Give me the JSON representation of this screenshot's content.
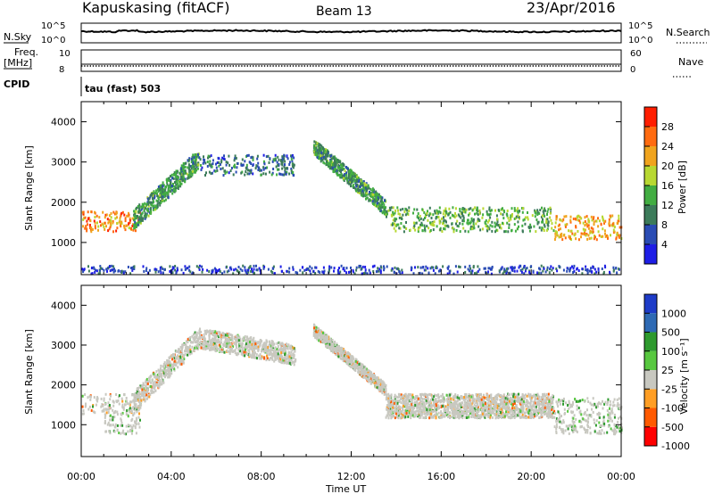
{
  "header": {
    "station": "Kapuskasing (fitACF)",
    "beam": "Beam 13",
    "date": "23/Apr/2016"
  },
  "nsky": {
    "label": "N.Sky",
    "ticks": [
      "10^5",
      "10^0"
    ],
    "right_ticks": [
      "10^5",
      "10^0"
    ],
    "right_label": "N.Search"
  },
  "freq": {
    "label_line1": "Freq.",
    "label_line2": "[MHz]",
    "ticks": [
      "10",
      "8"
    ],
    "right_ticks": [
      "60",
      "0"
    ],
    "right_label": "Nave"
  },
  "cpid": {
    "label": "CPID",
    "mode": "tau (fast) 503"
  },
  "colors": {
    "power": [
      "#1e1ee6",
      "#2a4cb4",
      "#3c7b5a",
      "#42ad42",
      "#b8d832",
      "#f0a41e",
      "#ff6b10",
      "#ff1e00"
    ],
    "velocity": [
      "#ff0000",
      "#ff5a00",
      "#ff9e24",
      "#c8c8c0",
      "#58c840",
      "#2e9a2e",
      "#2e6ab4",
      "#1e3cc8"
    ]
  },
  "chart_data": [
    {
      "type": "heatmap",
      "name": "power",
      "ylabel": "Slant Range [km]",
      "ylim": [
        200,
        4500
      ],
      "yticks": [
        "1000",
        "2000",
        "3000",
        "4000"
      ],
      "xlim": [
        0,
        24
      ],
      "colorbar": {
        "label": "Power [dB]",
        "ticks": [
          "4",
          "8",
          "12",
          "16",
          "20",
          "24",
          "28"
        ],
        "range": [
          0,
          32
        ]
      },
      "features": [
        {
          "x": [
            0.0,
            2.6
          ],
          "y": [
            1300,
            1800
          ],
          "typical": 24
        },
        {
          "x": [
            2.3,
            5.2
          ],
          "y": [
            1600,
            3300
          ],
          "typical": 12
        },
        {
          "x": [
            5.2,
            9.5
          ],
          "y": [
            2700,
            3200
          ],
          "typical": 8
        },
        {
          "x": [
            10.3,
            13.5
          ],
          "y": [
            1800,
            3600
          ],
          "typical": 12
        },
        {
          "x": [
            13.5,
            21.0
          ],
          "y": [
            1300,
            1900
          ],
          "typical": 14
        },
        {
          "x": [
            21.0,
            24.0
          ],
          "y": [
            1100,
            1700
          ],
          "typical": 22
        },
        {
          "x": [
            0.0,
            24.0
          ],
          "y": [
            250,
            450
          ],
          "typical": 6
        }
      ]
    },
    {
      "type": "heatmap",
      "name": "velocity",
      "ylabel": "Slant Range [km]",
      "xlabel": "Time UT",
      "ylim": [
        200,
        4500
      ],
      "yticks": [
        "1000",
        "2000",
        "3000",
        "4000"
      ],
      "xlim": [
        0,
        24
      ],
      "xticks": [
        "00:00",
        "04:00",
        "08:00",
        "12:00",
        "16:00",
        "20:00",
        "00:00"
      ],
      "colorbar": {
        "label": "Velocity [m s⁻¹]",
        "ticks": [
          "1000",
          "500",
          "100",
          "25",
          "-25",
          "-100",
          "-500",
          "-1000"
        ],
        "range": [
          -1000,
          1000
        ]
      },
      "features": [
        {
          "x": [
            0.0,
            2.6
          ],
          "y": [
            1300,
            1800
          ],
          "typical": 0
        },
        {
          "x": [
            1.0,
            2.6
          ],
          "y": [
            800,
            1300
          ],
          "typical": 150
        },
        {
          "x": [
            2.3,
            9.5
          ],
          "y": [
            1600,
            3300
          ],
          "typical": 0
        },
        {
          "x": [
            10.3,
            21.0
          ],
          "y": [
            1300,
            3600
          ],
          "typical": 0
        },
        {
          "x": [
            21.0,
            24.0
          ],
          "y": [
            800,
            1700
          ],
          "typical": 150
        }
      ]
    }
  ]
}
